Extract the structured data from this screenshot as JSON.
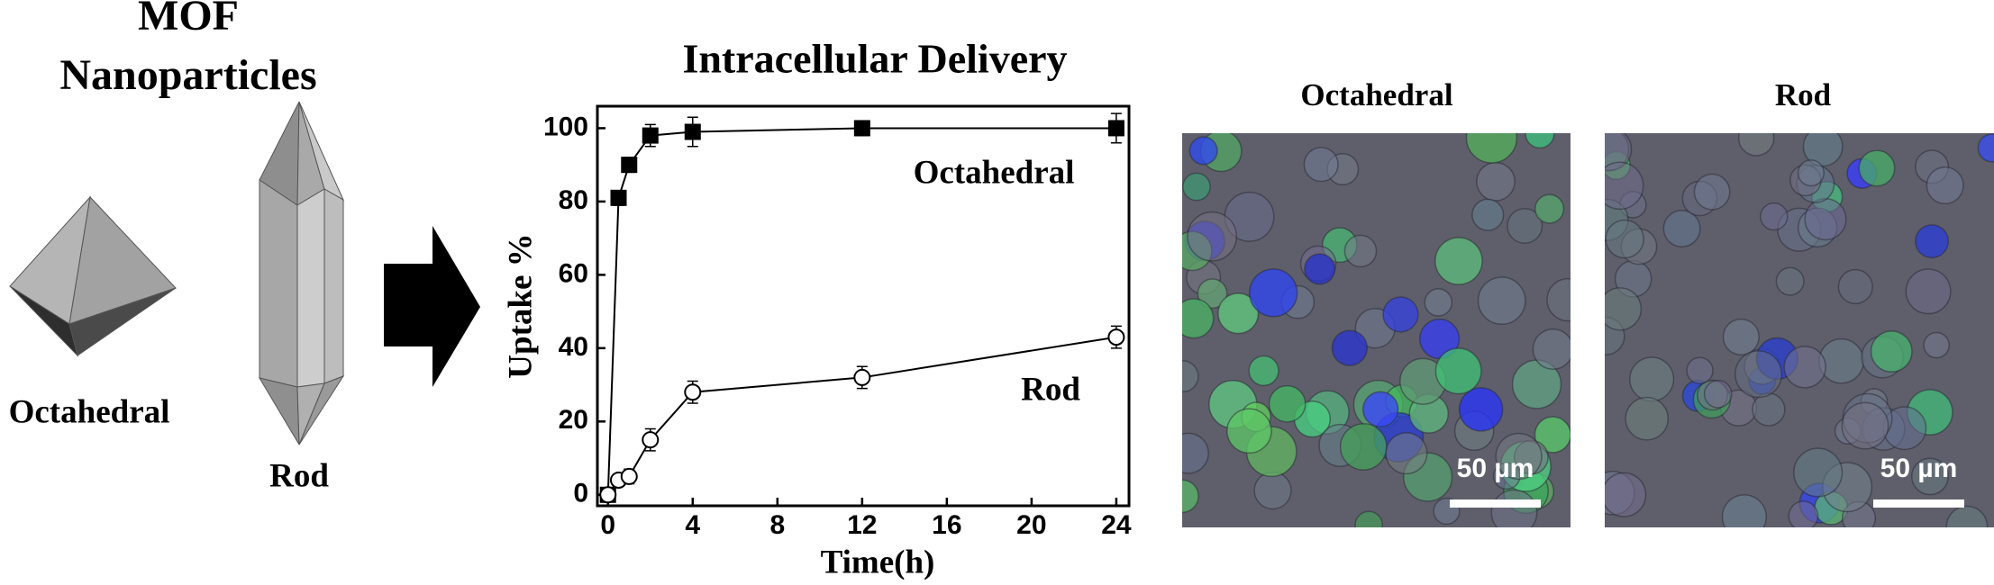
{
  "left_panel": {
    "title_lines": [
      "MOF",
      "Nanoparticles"
    ],
    "shapes": [
      "Octahedral",
      "Rod"
    ]
  },
  "chart_data": {
    "type": "line",
    "title": "Intracellular Delivery",
    "x_label": "Time(h)",
    "y_label": "Uptake %",
    "x": [
      0,
      0.5,
      1,
      2,
      4,
      12,
      24
    ],
    "series": [
      {
        "name": "Octahedral",
        "color": "#000000",
        "marker": "square",
        "marker_fill": "#000000",
        "values": [
          0,
          81,
          90,
          98,
          99,
          100,
          100
        ],
        "errors": [
          0,
          2,
          2,
          3,
          4,
          2,
          4
        ]
      },
      {
        "name": "Rod",
        "color": "#000000",
        "marker": "circle",
        "marker_fill": "#ffffff",
        "values": [
          0,
          4,
          5,
          15,
          28,
          32,
          43
        ],
        "errors": [
          0,
          1,
          2,
          3,
          3,
          3,
          3
        ]
      }
    ],
    "xlim": [
      -0.5,
      24.6
    ],
    "ylim": [
      -3,
      106
    ],
    "xticks": [
      0,
      4,
      8,
      12,
      16,
      20,
      24
    ],
    "yticks": [
      0,
      20,
      40,
      60,
      80,
      100
    ],
    "grid": false
  },
  "micrographs": {
    "panels": [
      {
        "title": "Octahedral",
        "scale_bar": "50 µm"
      },
      {
        "title": "Rod",
        "scale_bar": "50 µm"
      }
    ]
  }
}
